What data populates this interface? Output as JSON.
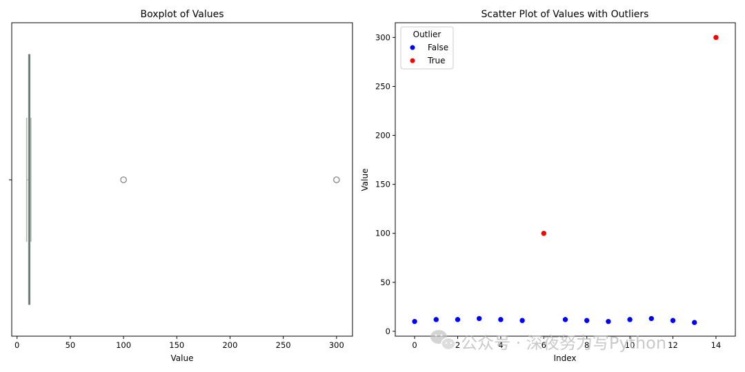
{
  "chart_data": [
    {
      "type": "boxplot",
      "title": "Boxplot of Values",
      "xlabel": "Value",
      "ylabel": "",
      "xlim": [
        -5,
        315
      ],
      "xticks": [
        0,
        50,
        100,
        150,
        200,
        250,
        300
      ],
      "box": {
        "whisker_low": 9,
        "q1": 10.75,
        "median": 11.5,
        "q3": 12.25,
        "whisker_high": 13
      },
      "outliers": [
        100,
        300
      ],
      "color": "#9eb8a8",
      "grid": false
    },
    {
      "type": "scatter",
      "title": "Scatter Plot of Values with Outliers",
      "xlabel": "Index",
      "ylabel": "Value",
      "xlim": [
        -0.9,
        14.9
      ],
      "ylim": [
        -5,
        315
      ],
      "xticks": [
        0,
        2,
        4,
        6,
        8,
        10,
        12,
        14
      ],
      "yticks": [
        0,
        50,
        100,
        150,
        200,
        250,
        300
      ],
      "legend": {
        "title": "Outlier",
        "placement": "top-left",
        "entries": [
          "False",
          "True"
        ]
      },
      "series": [
        {
          "name": "False",
          "color": "#0000ff",
          "points": [
            [
              0,
              10
            ],
            [
              1,
              12
            ],
            [
              2,
              12
            ],
            [
              3,
              13
            ],
            [
              4,
              12
            ],
            [
              5,
              11
            ],
            [
              7,
              12
            ],
            [
              8,
              11
            ],
            [
              9,
              10
            ],
            [
              10,
              12
            ],
            [
              11,
              13
            ],
            [
              12,
              11
            ],
            [
              13,
              9
            ]
          ]
        },
        {
          "name": "True",
          "color": "#ff0000",
          "points": [
            [
              6,
              100
            ],
            [
              14,
              300
            ]
          ]
        }
      ],
      "grid": false
    }
  ],
  "watermark": "公众号 · 深夜努力写Python"
}
